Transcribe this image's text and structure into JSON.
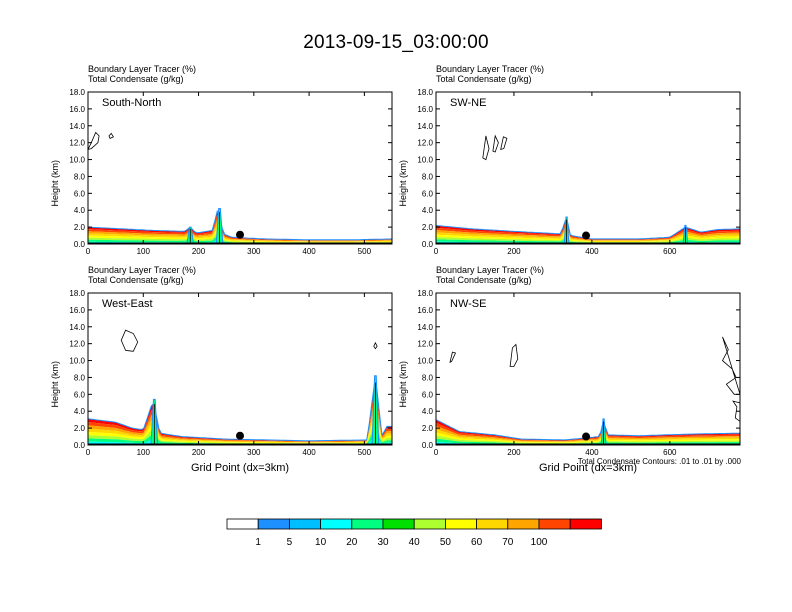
{
  "title": "2013-09-15_03:00:00",
  "colorbar": {
    "labels": [
      "1",
      "5",
      "10",
      "20",
      "30",
      "40",
      "50",
      "60",
      "70",
      "100"
    ],
    "colors": [
      "#ffffff",
      "#1e90ff",
      "#00bfff",
      "#00ffff",
      "#00ff7f",
      "#00e000",
      "#adff2f",
      "#ffff00",
      "#ffd700",
      "#ffa500",
      "#ff4500",
      "#ff0000"
    ]
  },
  "footnote": "Total Condensate Contours: .01 to .01 by .000",
  "chart_data": [
    {
      "type": "heatmap",
      "name": "South-North",
      "label_line1": "Boundary Layer Tracer   (%)",
      "label_line2": "Total Condensate   (g/kg)",
      "ylabel": "Height (km)",
      "xlabel": "",
      "xlim": [
        0,
        550
      ],
      "ylim": [
        0,
        18
      ],
      "xticks": [
        0,
        100,
        200,
        300,
        400,
        500
      ],
      "yticks": [
        "0.0",
        "2.0",
        "4.0",
        "6.0",
        "8.0",
        "10.0",
        "12.0",
        "14.0",
        "16.0",
        "18.0"
      ],
      "marker": [
        275,
        1.1
      ],
      "tracer_top_km": [
        [
          0,
          2.0
        ],
        [
          60,
          1.8
        ],
        [
          120,
          1.6
        ],
        [
          175,
          1.5
        ],
        [
          185,
          2.0
        ],
        [
          195,
          1.3
        ],
        [
          225,
          1.6
        ],
        [
          235,
          4.2
        ],
        [
          245,
          1.2
        ],
        [
          260,
          0.8
        ],
        [
          320,
          0.6
        ],
        [
          400,
          0.5
        ],
        [
          480,
          0.5
        ],
        [
          550,
          0.6
        ]
      ],
      "spikes": [
        [
          185,
          2.0
        ],
        [
          238,
          4.2
        ]
      ],
      "contours": [
        [
          [
            0,
            11.2
          ],
          [
            6,
            12.0
          ],
          [
            14,
            13.2
          ],
          [
            20,
            12.8
          ],
          [
            18,
            12.0
          ],
          [
            6,
            11.3
          ]
        ],
        [
          [
            38,
            12.8
          ],
          [
            42,
            13.1
          ],
          [
            46,
            12.7
          ],
          [
            40,
            12.5
          ]
        ]
      ]
    },
    {
      "type": "heatmap",
      "name": "SW-NE",
      "label_line1": "Boundary Layer Tracer   (%)",
      "label_line2": "Total Condensate   (g/kg)",
      "ylabel": "Height (km)",
      "xlabel": "",
      "xlim": [
        0,
        780
      ],
      "ylim": [
        0,
        18
      ],
      "xticks": [
        0,
        200,
        400,
        600
      ],
      "yticks": [
        "0.0",
        "2.0",
        "4.0",
        "6.0",
        "8.0",
        "10.0",
        "12.0",
        "14.0",
        "16.0",
        "18.0"
      ],
      "marker": [
        385,
        1.0
      ],
      "tracer_top_km": [
        [
          0,
          2.2
        ],
        [
          90,
          1.8
        ],
        [
          200,
          1.5
        ],
        [
          320,
          1.2
        ],
        [
          335,
          3.2
        ],
        [
          345,
          1.0
        ],
        [
          400,
          0.6
        ],
        [
          520,
          0.6
        ],
        [
          600,
          0.8
        ],
        [
          640,
          2.0
        ],
        [
          680,
          1.4
        ],
        [
          720,
          1.7
        ],
        [
          780,
          1.8
        ]
      ],
      "spikes": [
        [
          335,
          3.2
        ],
        [
          640,
          2.2
        ]
      ],
      "contours": [
        [
          [
            120,
            10.2
          ],
          [
            128,
            12.8
          ],
          [
            136,
            11.3
          ],
          [
            128,
            10.0
          ]
        ],
        [
          [
            146,
            11.0
          ],
          [
            152,
            12.8
          ],
          [
            160,
            12.0
          ],
          [
            152,
            10.9
          ]
        ],
        [
          [
            166,
            11.2
          ],
          [
            173,
            12.7
          ],
          [
            182,
            12.5
          ],
          [
            174,
            11.3
          ]
        ]
      ]
    },
    {
      "type": "heatmap",
      "name": "West-East",
      "label_line1": "Boundary Layer Tracer   (%)",
      "label_line2": "Total Condensate   (g/kg)",
      "ylabel": "Height (km)",
      "xlabel": "Grid Point (dx=3km)",
      "xlim": [
        0,
        550
      ],
      "ylim": [
        0,
        18
      ],
      "xticks": [
        0,
        100,
        200,
        300,
        400,
        500
      ],
      "yticks": [
        "0.0",
        "2.0",
        "4.0",
        "6.0",
        "8.0",
        "10.0",
        "12.0",
        "14.0",
        "16.0",
        "18.0"
      ],
      "marker": [
        275,
        1.1
      ],
      "tracer_top_km": [
        [
          0,
          3.1
        ],
        [
          50,
          2.7
        ],
        [
          80,
          2.0
        ],
        [
          100,
          1.8
        ],
        [
          118,
          5.3
        ],
        [
          130,
          1.4
        ],
        [
          170,
          1.0
        ],
        [
          250,
          0.7
        ],
        [
          400,
          0.5
        ],
        [
          505,
          0.6
        ],
        [
          520,
          8.2
        ],
        [
          532,
          1.0
        ],
        [
          540,
          2.2
        ],
        [
          550,
          2.2
        ]
      ],
      "spikes": [
        [
          120,
          5.4
        ],
        [
          520,
          8.2
        ]
      ],
      "contours": [
        [
          [
            60,
            12.4
          ],
          [
            68,
            13.6
          ],
          [
            82,
            13.2
          ],
          [
            90,
            12.2
          ],
          [
            82,
            11.1
          ],
          [
            68,
            11.2
          ]
        ],
        [
          [
            517,
            11.7
          ],
          [
            520,
            12.1
          ],
          [
            523,
            11.7
          ],
          [
            520,
            11.4
          ]
        ]
      ]
    },
    {
      "type": "heatmap",
      "name": "NW-SE",
      "label_line1": "Boundary Layer Tracer   (%)",
      "label_line2": "Total Condensate   (g/kg)",
      "ylabel": "Height (km)",
      "xlabel": "Grid Point (dx=3km)",
      "xlim": [
        0,
        780
      ],
      "ylim": [
        0,
        18
      ],
      "xticks": [
        0,
        200,
        400,
        600
      ],
      "yticks": [
        "0.0",
        "2.0",
        "4.0",
        "6.0",
        "8.0",
        "10.0",
        "12.0",
        "14.0",
        "16.0",
        "18.0"
      ],
      "marker": [
        385,
        1.0
      ],
      "tracer_top_km": [
        [
          0,
          3.0
        ],
        [
          60,
          1.6
        ],
        [
          150,
          1.2
        ],
        [
          220,
          0.7
        ],
        [
          330,
          0.6
        ],
        [
          420,
          1.0
        ],
        [
          430,
          3.0
        ],
        [
          440,
          1.2
        ],
        [
          520,
          1.1
        ],
        [
          660,
          1.3
        ],
        [
          780,
          1.4
        ]
      ],
      "spikes": [
        [
          430,
          3.1
        ]
      ],
      "contours": [
        [
          [
            36,
            9.8
          ],
          [
            42,
            11.0
          ],
          [
            50,
            10.9
          ],
          [
            40,
            9.9
          ]
        ],
        [
          [
            190,
            9.3
          ],
          [
            196,
            11.5
          ],
          [
            205,
            11.9
          ],
          [
            210,
            10.2
          ],
          [
            200,
            9.3
          ]
        ],
        [
          [
            735,
            12.8
          ],
          [
            750,
            11.3
          ],
          [
            735,
            10.0
          ],
          [
            760,
            9.0
          ],
          [
            770,
            8.0
          ],
          [
            745,
            7.2
          ],
          [
            765,
            6.0
          ],
          [
            780,
            6.0
          ]
        ],
        [
          [
            762,
            5.2
          ],
          [
            780,
            5.0
          ],
          [
            780,
            2.8
          ],
          [
            768,
            3.2
          ],
          [
            772,
            4.5
          ]
        ]
      ]
    }
  ]
}
